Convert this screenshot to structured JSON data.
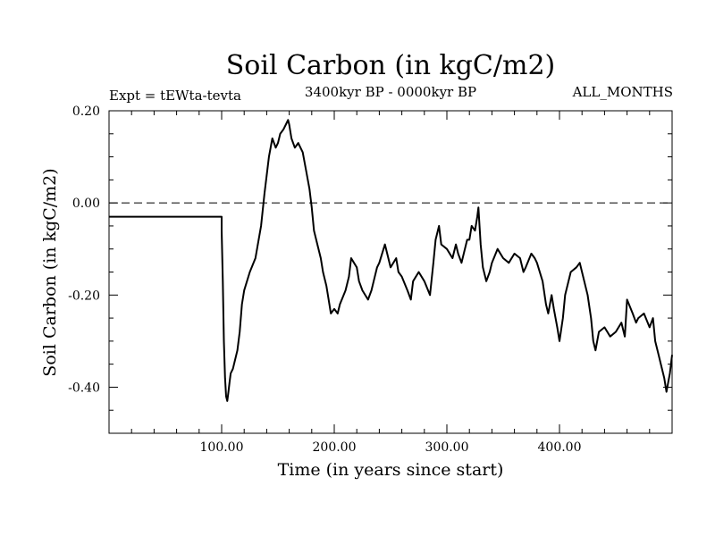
{
  "chart_data": {
    "type": "line",
    "title": "Soil Carbon (in kgC/m2)",
    "subtitle": "3400kyr BP - 0000kyr BP",
    "expt_label": "Expt = tEWta-tevta",
    "months_label": "ALL_MONTHS",
    "xlabel": "Time (in years since start)",
    "ylabel": "Soil Carbon (in kgC/m2)",
    "xlim": [
      0,
      500
    ],
    "ylim": [
      -0.5,
      0.2
    ],
    "xticks": [
      100,
      200,
      300,
      400
    ],
    "xtick_labels": [
      "100.00",
      "200.00",
      "300.00",
      "400.00"
    ],
    "yticks": [
      0.2,
      0.0,
      -0.2,
      -0.4
    ],
    "ytick_labels": [
      "0.20",
      "0.00",
      "-0.20",
      "-0.40"
    ],
    "reference_line": 0.0,
    "series": [
      {
        "name": "Soil Carbon",
        "color": "#000000",
        "x": [
          0,
          100,
          100,
          101,
          102,
          103,
          104,
          105,
          106,
          107,
          108,
          110,
          112,
          114,
          116,
          118,
          120,
          125,
          130,
          135,
          138,
          140,
          142,
          145,
          148,
          150,
          152,
          155,
          157,
          159,
          160,
          162,
          165,
          168,
          170,
          172,
          175,
          178,
          180,
          182,
          185,
          188,
          190,
          193,
          195,
          197,
          200,
          203,
          205,
          210,
          213,
          215,
          220,
          222,
          225,
          230,
          233,
          235,
          238,
          240,
          245,
          248,
          250,
          255,
          257,
          260,
          265,
          268,
          270,
          275,
          280,
          285,
          288,
          290,
          293,
          295,
          300,
          305,
          308,
          310,
          313,
          315,
          318,
          320,
          322,
          325,
          327,
          328,
          330,
          332,
          335,
          338,
          340,
          345,
          350,
          355,
          360,
          365,
          368,
          370,
          375,
          378,
          380,
          385,
          388,
          390,
          393,
          395,
          398,
          400,
          403,
          405,
          408,
          410,
          415,
          418,
          420,
          425,
          428,
          430,
          432,
          435,
          440,
          445,
          450,
          455,
          458,
          460,
          465,
          468,
          470,
          475,
          480,
          483,
          485,
          488,
          490,
          493,
          495,
          498,
          500
        ],
        "values": [
          -0.03,
          -0.03,
          -0.06,
          -0.17,
          -0.3,
          -0.38,
          -0.42,
          -0.43,
          -0.41,
          -0.39,
          -0.37,
          -0.36,
          -0.34,
          -0.32,
          -0.28,
          -0.22,
          -0.19,
          -0.15,
          -0.12,
          -0.05,
          0.02,
          0.06,
          0.1,
          0.14,
          0.12,
          0.13,
          0.15,
          0.16,
          0.17,
          0.18,
          0.17,
          0.14,
          0.12,
          0.13,
          0.12,
          0.11,
          0.07,
          0.03,
          -0.01,
          -0.06,
          -0.09,
          -0.12,
          -0.15,
          -0.18,
          -0.21,
          -0.24,
          -0.23,
          -0.24,
          -0.22,
          -0.19,
          -0.16,
          -0.12,
          -0.14,
          -0.17,
          -0.19,
          -0.21,
          -0.19,
          -0.17,
          -0.14,
          -0.13,
          -0.09,
          -0.12,
          -0.14,
          -0.12,
          -0.15,
          -0.16,
          -0.19,
          -0.21,
          -0.17,
          -0.15,
          -0.17,
          -0.2,
          -0.13,
          -0.08,
          -0.05,
          -0.09,
          -0.1,
          -0.12,
          -0.09,
          -0.11,
          -0.13,
          -0.11,
          -0.08,
          -0.08,
          -0.05,
          -0.06,
          -0.03,
          -0.01,
          -0.09,
          -0.14,
          -0.17,
          -0.15,
          -0.13,
          -0.1,
          -0.12,
          -0.13,
          -0.11,
          -0.12,
          -0.15,
          -0.14,
          -0.11,
          -0.12,
          -0.13,
          -0.17,
          -0.22,
          -0.24,
          -0.2,
          -0.23,
          -0.27,
          -0.3,
          -0.25,
          -0.2,
          -0.17,
          -0.15,
          -0.14,
          -0.13,
          -0.15,
          -0.2,
          -0.25,
          -0.3,
          -0.32,
          -0.28,
          -0.27,
          -0.29,
          -0.28,
          -0.26,
          -0.29,
          -0.21,
          -0.24,
          -0.26,
          -0.25,
          -0.24,
          -0.27,
          -0.25,
          -0.3,
          -0.33,
          -0.35,
          -0.38,
          -0.41,
          -0.37,
          -0.33
        ]
      }
    ]
  }
}
